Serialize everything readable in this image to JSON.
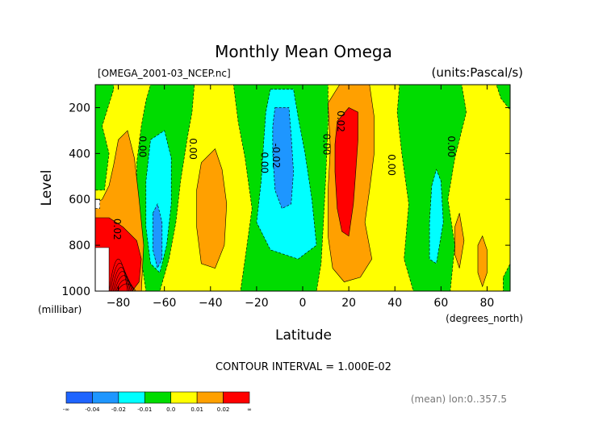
{
  "chart_data": {
    "type": "contour",
    "title": "Monthly Mean Omega",
    "file_label": "[OMEGA_2001-03_NCEP.nc]",
    "units_label": "(units:Pascal/s)",
    "xlabel": "Latitude",
    "x_units": "(degrees_north)",
    "ylabel": "Level",
    "y_units": "(millibar)",
    "xlim": [
      -90,
      90
    ],
    "ylim": [
      1000,
      100
    ],
    "x_ticks": [
      {
        "value": -80,
        "label": "-80"
      },
      {
        "value": -60,
        "label": "-60"
      },
      {
        "value": -40,
        "label": "-40"
      },
      {
        "value": -20,
        "label": "-20"
      },
      {
        "value": 0,
        "label": "0"
      },
      {
        "value": 20,
        "label": "20"
      },
      {
        "value": 40,
        "label": "40"
      },
      {
        "value": 60,
        "label": "60"
      },
      {
        "value": 80,
        "label": "80"
      }
    ],
    "y_ticks": [
      {
        "value": 200,
        "label": "200"
      },
      {
        "value": 400,
        "label": "400"
      },
      {
        "value": 600,
        "label": "600"
      },
      {
        "value": 800,
        "label": "800"
      },
      {
        "value": 1000,
        "label": "1000"
      }
    ],
    "contour_interval_text": "CONTOUR INTERVAL = 1.000E-02",
    "footer_text": "(mean) lon:0..357.5",
    "contour_labels": [
      {
        "text": "0.00",
        "lat": -71,
        "level": 370
      },
      {
        "text": "0.00",
        "lat": -49,
        "level": 380
      },
      {
        "text": "0.00",
        "lat": -18,
        "level": 440
      },
      {
        "text": "-0.02",
        "lat": -13,
        "level": 410
      },
      {
        "text": "0.00",
        "lat": 9,
        "level": 360
      },
      {
        "text": "0.02",
        "lat": 15,
        "level": 260
      },
      {
        "text": "0.00",
        "lat": 37,
        "level": 450
      },
      {
        "text": "0.00",
        "lat": 63,
        "level": 370
      },
      {
        "text": "0.02",
        "lat": -82,
        "level": 730
      }
    ],
    "colorbar": {
      "bins": [
        {
          "color": "#1e64ff"
        },
        {
          "color": "#1e96ff"
        },
        {
          "color": "#00ffff"
        },
        {
          "color": "#00dc00"
        },
        {
          "color": "#ffff00"
        },
        {
          "color": "#ffa000"
        },
        {
          "color": "#ff0000"
        }
      ],
      "labels": [
        "-∞",
        "-0.04",
        "-0.02",
        "-0.01",
        "0.0",
        "0.01",
        "0.02",
        "∞"
      ]
    },
    "regions": [
      {
        "value": 0.005,
        "color": "#ffff00",
        "ring": [
          [
            -90,
            100
          ],
          [
            90,
            100
          ],
          [
            90,
            1000
          ],
          [
            -90,
            1000
          ]
        ]
      },
      {
        "value": -0.005,
        "color": "#00dc00",
        "ring": [
          [
            -90,
            100
          ],
          [
            -82,
            100
          ],
          [
            -82,
            120
          ],
          [
            -87,
            280
          ],
          [
            -84,
            400
          ],
          [
            -86,
            560
          ],
          [
            -90,
            560
          ]
        ]
      },
      {
        "value": -0.005,
        "color": "#00dc00",
        "ring": [
          [
            -66,
            100
          ],
          [
            -47,
            100
          ],
          [
            -48,
            220
          ],
          [
            -50,
            330
          ],
          [
            -53,
            520
          ],
          [
            -55,
            700
          ],
          [
            -58,
            860
          ],
          [
            -62,
            1000
          ],
          [
            -68,
            1000
          ],
          [
            -70,
            860
          ],
          [
            -72,
            640
          ],
          [
            -72,
            440
          ],
          [
            -70,
            280
          ],
          [
            -68,
            170
          ]
        ]
      },
      {
        "value": -0.005,
        "color": "#00dc00",
        "ring": [
          [
            -30,
            100
          ],
          [
            11,
            100
          ],
          [
            11,
            260
          ],
          [
            10,
            500
          ],
          [
            9,
            700
          ],
          [
            8,
            880
          ],
          [
            6,
            1000
          ],
          [
            -27,
            1000
          ],
          [
            -25,
            860
          ],
          [
            -22,
            640
          ],
          [
            -25,
            420
          ],
          [
            -28,
            260
          ]
        ]
      },
      {
        "value": -0.005,
        "color": "#00dc00",
        "ring": [
          [
            42,
            100
          ],
          [
            69,
            100
          ],
          [
            71,
            220
          ],
          [
            66,
            420
          ],
          [
            63,
            600
          ],
          [
            66,
            800
          ],
          [
            64,
            1000
          ],
          [
            48,
            1000
          ],
          [
            44,
            860
          ],
          [
            46,
            620
          ],
          [
            43,
            400
          ],
          [
            41,
            220
          ]
        ]
      },
      {
        "value": -0.005,
        "color": "#00dc00",
        "ring": [
          [
            84,
            100
          ],
          [
            90,
            100
          ],
          [
            90,
            210
          ],
          [
            86,
            160
          ]
        ]
      },
      {
        "value": -0.005,
        "color": "#00dc00",
        "ring": [
          [
            87,
            940
          ],
          [
            90,
            880
          ],
          [
            90,
            1000
          ],
          [
            87,
            1000
          ]
        ]
      },
      {
        "value": 0.015,
        "color": "#ffa000",
        "ring": [
          [
            -87,
            600
          ],
          [
            -84,
            540
          ],
          [
            -82,
            450
          ],
          [
            -80,
            340
          ],
          [
            -76,
            300
          ],
          [
            -73,
            420
          ],
          [
            -71,
            600
          ],
          [
            -69,
            800
          ],
          [
            -70,
            1000
          ],
          [
            -90,
            1000
          ],
          [
            -90,
            620
          ]
        ]
      },
      {
        "value": 0.015,
        "color": "#ffa000",
        "ring": [
          [
            -44,
            440
          ],
          [
            -38,
            380
          ],
          [
            -35,
            470
          ],
          [
            -33,
            620
          ],
          [
            -34,
            800
          ],
          [
            -38,
            900
          ],
          [
            -44,
            880
          ],
          [
            -46,
            720
          ],
          [
            -46,
            560
          ]
        ]
      },
      {
        "value": 0.015,
        "color": "#ffa000",
        "ring": [
          [
            11,
            180
          ],
          [
            16,
            100
          ],
          [
            29,
            100
          ],
          [
            31,
            240
          ],
          [
            31,
            400
          ],
          [
            29,
            560
          ],
          [
            27,
            700
          ],
          [
            30,
            860
          ],
          [
            25,
            940
          ],
          [
            18,
            960
          ],
          [
            13,
            900
          ],
          [
            11,
            760
          ],
          [
            11,
            560
          ],
          [
            12,
            380
          ]
        ]
      },
      {
        "value": 0.015,
        "color": "#ffa000",
        "ring": [
          [
            66,
            720
          ],
          [
            68,
            660
          ],
          [
            70,
            780
          ],
          [
            68,
            900
          ],
          [
            66,
            840
          ]
        ]
      },
      {
        "value": 0.015,
        "color": "#ffa000",
        "ring": [
          [
            76,
            800
          ],
          [
            78,
            760
          ],
          [
            80,
            820
          ],
          [
            80,
            920
          ],
          [
            78,
            980
          ],
          [
            76,
            920
          ]
        ]
      },
      {
        "value": -0.015,
        "color": "#00ffff",
        "ring": [
          [
            -66,
            340
          ],
          [
            -60,
            300
          ],
          [
            -57,
            420
          ],
          [
            -57,
            620
          ],
          [
            -59,
            800
          ],
          [
            -62,
            920
          ],
          [
            -66,
            880
          ],
          [
            -68,
            720
          ],
          [
            -68,
            520
          ]
        ]
      },
      {
        "value": -0.015,
        "color": "#00ffff",
        "ring": [
          [
            -14,
            120
          ],
          [
            -4,
            120
          ],
          [
            -2,
            240
          ],
          [
            1,
            400
          ],
          [
            4,
            600
          ],
          [
            6,
            800
          ],
          [
            -2,
            860
          ],
          [
            -14,
            820
          ],
          [
            -20,
            700
          ],
          [
            -18,
            520
          ],
          [
            -17,
            360
          ],
          [
            -16,
            220
          ]
        ]
      },
      {
        "value": -0.015,
        "color": "#00ffff",
        "ring": [
          [
            56,
            540
          ],
          [
            58,
            470
          ],
          [
            60,
            520
          ],
          [
            61,
            700
          ],
          [
            58,
            880
          ],
          [
            55,
            860
          ],
          [
            55,
            700
          ]
        ]
      },
      {
        "value": -0.025,
        "color": "#1e96ff",
        "ring": [
          [
            -65,
            660
          ],
          [
            -63,
            620
          ],
          [
            -61,
            700
          ],
          [
            -61,
            860
          ],
          [
            -63,
            900
          ],
          [
            -65,
            820
          ]
        ]
      },
      {
        "value": -0.025,
        "color": "#1e96ff",
        "ring": [
          [
            -12,
            200
          ],
          [
            -6,
            200
          ],
          [
            -5,
            320
          ],
          [
            -4,
            480
          ],
          [
            -5,
            620
          ],
          [
            -9,
            640
          ],
          [
            -12,
            560
          ],
          [
            -13,
            400
          ],
          [
            -13,
            280
          ]
        ]
      },
      {
        "value": 0.025,
        "color": "#ff0000",
        "ring": [
          [
            15,
            260
          ],
          [
            20,
            200
          ],
          [
            24,
            220
          ],
          [
            24,
            340
          ],
          [
            23,
            480
          ],
          [
            22,
            620
          ],
          [
            20,
            760
          ],
          [
            17,
            740
          ],
          [
            15,
            640
          ],
          [
            14,
            480
          ],
          [
            14,
            360
          ]
        ]
      },
      {
        "value": 0.025,
        "color": "#ff0000",
        "ring": [
          [
            -90,
            680
          ],
          [
            -84,
            680
          ],
          [
            -78,
            720
          ],
          [
            -72,
            780
          ],
          [
            -70,
            860
          ],
          [
            -71,
            960
          ],
          [
            -74,
            1000
          ],
          [
            -90,
            1000
          ]
        ]
      },
      {
        "value": -0.025,
        "color": "#ffffff",
        "ring": [
          [
            -90,
            600
          ],
          [
            -88,
            600
          ],
          [
            -88,
            640
          ],
          [
            -90,
            640
          ]
        ]
      },
      {
        "value": 0.0,
        "color": "#ffffff",
        "ring": [
          [
            -90,
            810
          ],
          [
            -84,
            810
          ],
          [
            -84,
            1000
          ],
          [
            -90,
            1000
          ]
        ]
      }
    ]
  }
}
